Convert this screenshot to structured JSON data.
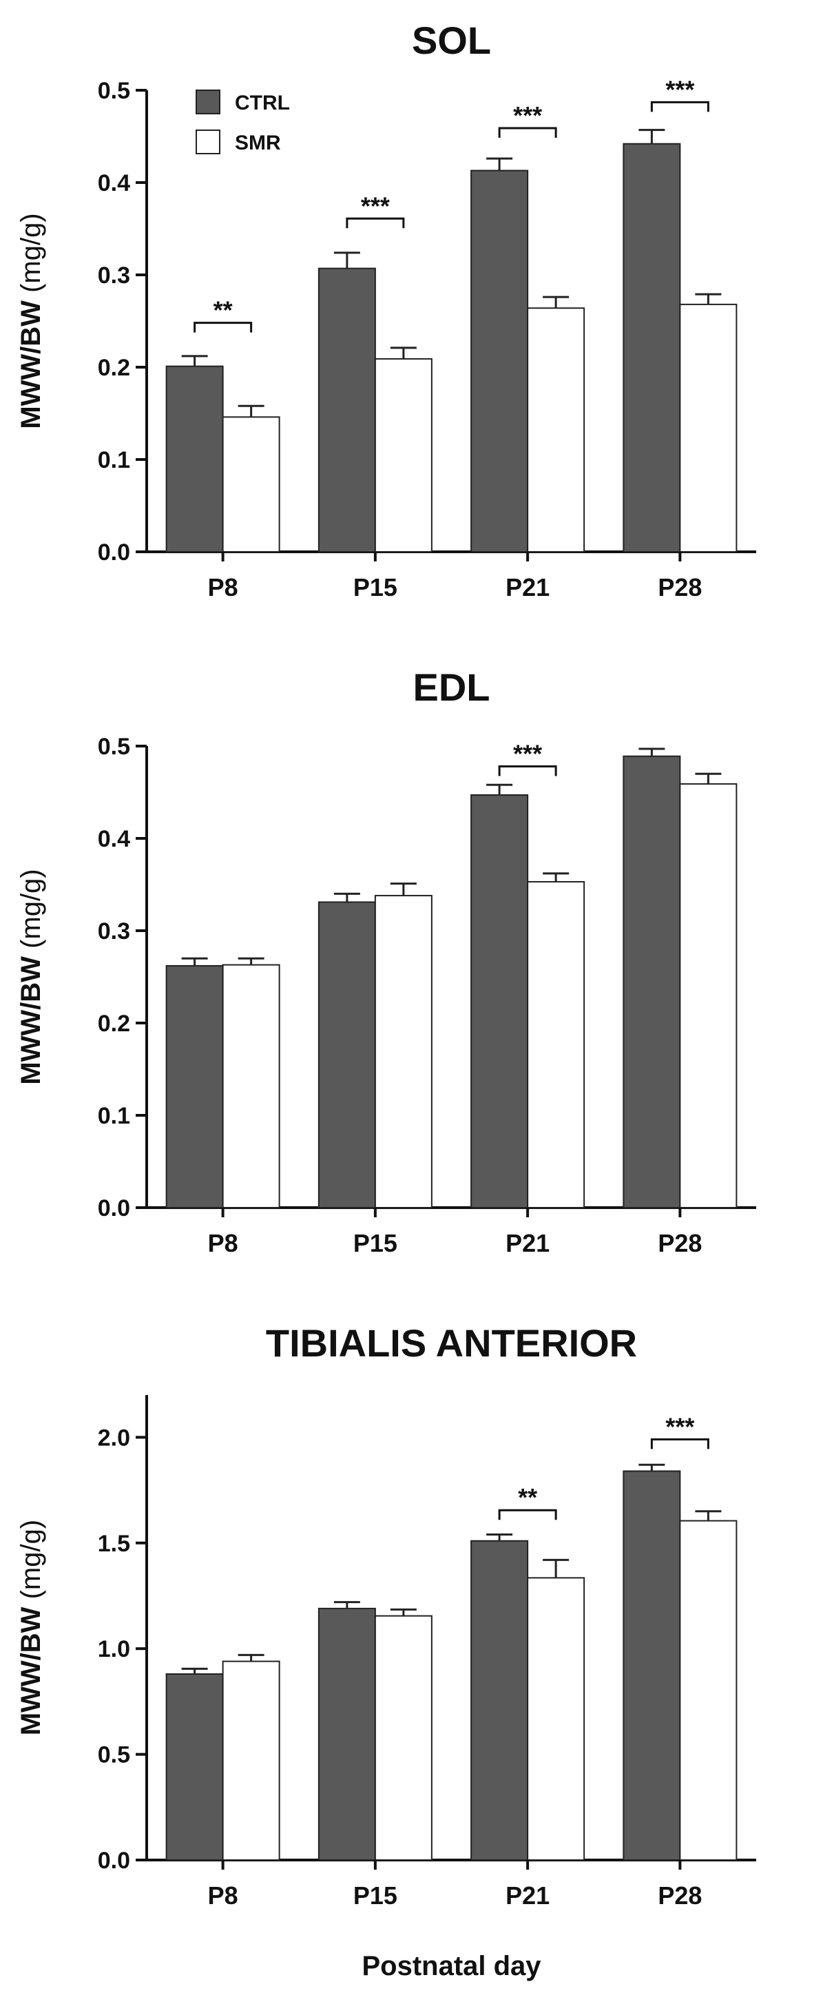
{
  "chart_data": [
    {
      "type": "bar",
      "title": "SOL",
      "ylabel_bold": "MWW/BW",
      "ylabel_unit": " (mg/g)",
      "xlabel": "",
      "categories": [
        "P8",
        "P15",
        "P21",
        "P28"
      ],
      "ylim": [
        0,
        0.5
      ],
      "yticks": [
        "0.0",
        "0.1",
        "0.2",
        "0.3",
        "0.4",
        "0.5"
      ],
      "series": [
        {
          "name": "CTRL",
          "color": "#595959",
          "values": [
            0.201,
            0.307,
            0.413,
            0.442
          ],
          "errors": [
            0.011,
            0.017,
            0.013,
            0.015
          ]
        },
        {
          "name": "SMR",
          "color": "#ffffff",
          "values": [
            0.146,
            0.209,
            0.264,
            0.268
          ],
          "errors": [
            0.012,
            0.012,
            0.012,
            0.011
          ]
        }
      ],
      "significance": [
        {
          "category": "P8",
          "label": "**",
          "y": 0.248
        },
        {
          "category": "P15",
          "label": "***",
          "y": 0.361
        },
        {
          "category": "P21",
          "label": "***",
          "y": 0.459
        },
        {
          "category": "P28",
          "label": "***",
          "y": 0.487
        }
      ],
      "legend": {
        "position": "top-left",
        "entries": [
          "CTRL",
          "SMR"
        ]
      }
    },
    {
      "type": "bar",
      "title": "EDL",
      "ylabel_bold": "MWW/BW",
      "ylabel_unit": " (mg/g)",
      "xlabel": "",
      "categories": [
        "P8",
        "P15",
        "P21",
        "P28"
      ],
      "ylim": [
        0,
        0.5
      ],
      "yticks": [
        "0.0",
        "0.1",
        "0.2",
        "0.3",
        "0.4",
        "0.5"
      ],
      "series": [
        {
          "name": "CTRL",
          "color": "#595959",
          "values": [
            0.262,
            0.331,
            0.447,
            0.489
          ],
          "errors": [
            0.008,
            0.009,
            0.011,
            0.008
          ]
        },
        {
          "name": "SMR",
          "color": "#ffffff",
          "values": [
            0.263,
            0.338,
            0.353,
            0.459
          ],
          "errors": [
            0.007,
            0.013,
            0.009,
            0.011
          ]
        }
      ],
      "significance": [
        {
          "category": "P21",
          "label": "***",
          "y": 0.478
        }
      ]
    },
    {
      "type": "bar",
      "title": "TIBIALIS ANTERIOR",
      "ylabel_bold": "MWW/BW",
      "ylabel_unit": " (mg/g)",
      "xlabel": "Postnatal day",
      "categories": [
        "P8",
        "P15",
        "P21",
        "P28"
      ],
      "ylim": [
        0,
        2.2
      ],
      "yticks": [
        "0.0",
        "0.5",
        "1.0",
        "1.5",
        "2.0"
      ],
      "series": [
        {
          "name": "CTRL",
          "color": "#595959",
          "values": [
            0.88,
            1.19,
            1.51,
            1.84
          ],
          "errors": [
            0.025,
            0.03,
            0.03,
            0.03
          ]
        },
        {
          "name": "SMR",
          "color": "#ffffff",
          "values": [
            0.94,
            1.155,
            1.335,
            1.605
          ],
          "errors": [
            0.03,
            0.03,
            0.085,
            0.045
          ]
        }
      ],
      "significance": [
        {
          "category": "P21",
          "label": "**",
          "y": 1.655
        },
        {
          "category": "P28",
          "label": "***",
          "y": 1.99
        }
      ]
    }
  ]
}
